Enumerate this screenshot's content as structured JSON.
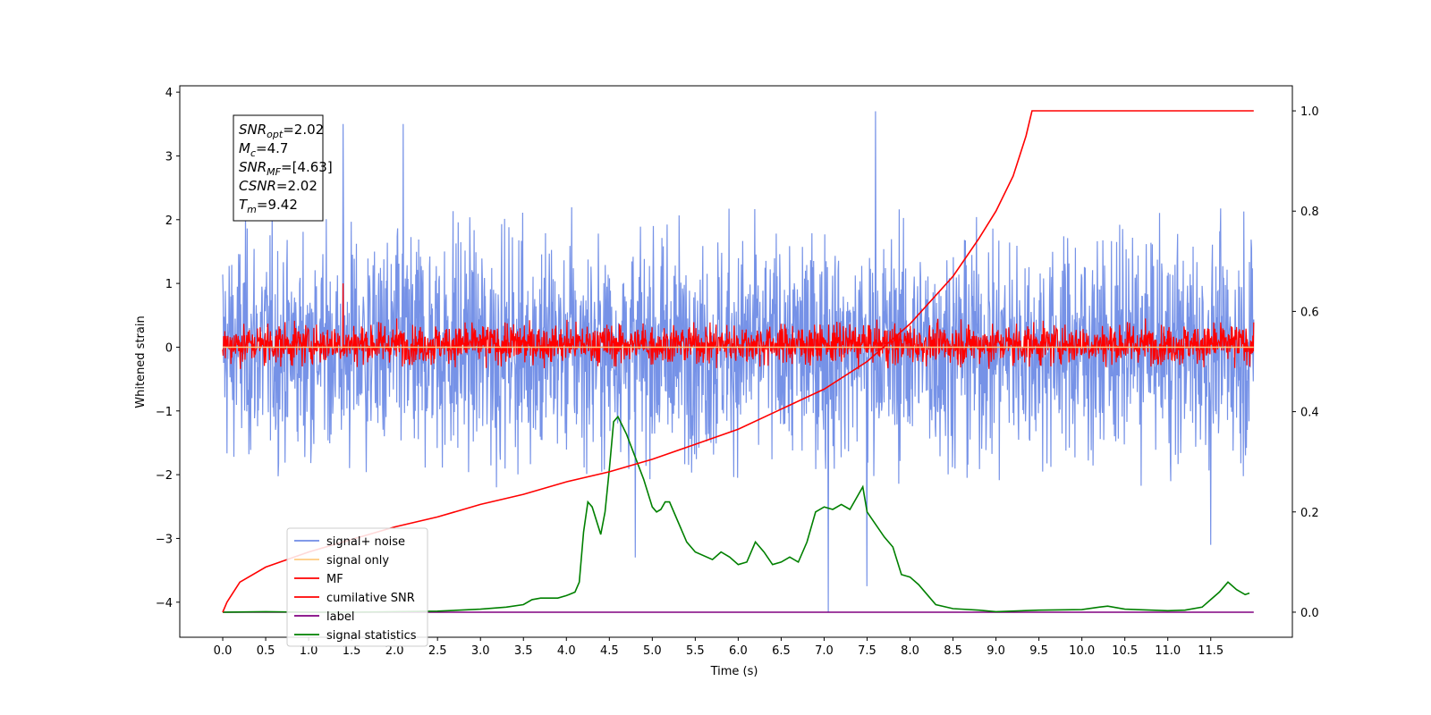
{
  "chart_data": {
    "type": "line",
    "xlabel": "Time (s)",
    "ylabel": "Whitened strain",
    "xlim": [
      -0.5,
      12.45
    ],
    "ylim": [
      -4.55,
      4.1
    ],
    "y2lim": [
      -0.05,
      1.05
    ],
    "x_ticks": [
      0.0,
      0.5,
      1.0,
      1.5,
      2.0,
      2.5,
      3.0,
      3.5,
      4.0,
      4.5,
      5.0,
      5.5,
      6.0,
      6.5,
      7.0,
      7.5,
      8.0,
      8.5,
      9.0,
      9.5,
      10.0,
      10.5,
      11.0,
      11.5
    ],
    "x_tick_labels": [
      "0.0",
      "0.5",
      "1.0",
      "1.5",
      "2.0",
      "2.5",
      "3.0",
      "3.5",
      "4.0",
      "4.5",
      "5.0",
      "5.5",
      "6.0",
      "6.5",
      "7.0",
      "7.5",
      "8.0",
      "8.5",
      "9.0",
      "9.5",
      "10.0",
      "10.5",
      "11.0",
      "11.5"
    ],
    "y_ticks": [
      4,
      3,
      2,
      1,
      0,
      -1,
      -2,
      -3,
      -4
    ],
    "y_tick_labels": [
      "4",
      "3",
      "2",
      "1",
      "0",
      "−1",
      "−2",
      "−3",
      "−4"
    ],
    "y2_ticks": [
      1.0,
      0.8,
      0.6,
      0.4,
      0.2,
      0.0
    ],
    "y2_tick_labels": [
      "1.0",
      "0.8",
      "0.6",
      "0.4",
      "0.2",
      "0.0"
    ],
    "grid": false,
    "legend_position": "lower-left",
    "series": [
      {
        "name": "signal+ noise",
        "color": "#6f8ce6",
        "axis": "left",
        "kind": "noise",
        "x_range": [
          0,
          12.0
        ],
        "amplitude_typical": [
          -2.2,
          2.2
        ],
        "peaks": [
          [
            1.4,
            3.5
          ],
          [
            2.1,
            3.5
          ],
          [
            7.6,
            3.7
          ],
          [
            7.05,
            -4.15
          ],
          [
            7.5,
            -3.75
          ],
          [
            4.8,
            -3.3
          ],
          [
            11.5,
            -3.1
          ]
        ]
      },
      {
        "name": "signal only",
        "color": "#ffcc80",
        "axis": "left",
        "kind": "line",
        "x": [
          0,
          12.0
        ],
        "y": [
          0,
          0
        ]
      },
      {
        "name": "MF",
        "color": "#ff0000",
        "axis": "left",
        "kind": "noise",
        "x_range": [
          0,
          12.0
        ],
        "amplitude_typical": [
          -0.35,
          0.45
        ],
        "peaks": [
          [
            1.4,
            1.0
          ]
        ]
      },
      {
        "name": "cumilative SNR",
        "color": "#ff0000",
        "axis": "right",
        "kind": "line",
        "x": [
          0.0,
          0.05,
          0.2,
          0.5,
          1.0,
          1.5,
          2.0,
          2.5,
          3.0,
          3.5,
          4.0,
          4.5,
          5.0,
          5.5,
          6.0,
          6.5,
          7.0,
          7.5,
          8.0,
          8.5,
          8.8,
          9.0,
          9.2,
          9.35,
          9.42,
          12.0
        ],
        "y": [
          0.0,
          0.02,
          0.06,
          0.09,
          0.12,
          0.145,
          0.17,
          0.19,
          0.215,
          0.235,
          0.26,
          0.28,
          0.305,
          0.335,
          0.365,
          0.405,
          0.445,
          0.5,
          0.575,
          0.67,
          0.745,
          0.8,
          0.87,
          0.95,
          1.0,
          1.0
        ]
      },
      {
        "name": "label",
        "color": "#800080",
        "axis": "right",
        "kind": "line",
        "x": [
          0,
          12.0
        ],
        "y": [
          0,
          0
        ]
      },
      {
        "name": "signal statistics",
        "color": "#008000",
        "axis": "right",
        "kind": "line",
        "x": [
          0.0,
          0.5,
          1.0,
          1.5,
          2.0,
          2.5,
          3.0,
          3.3,
          3.5,
          3.6,
          3.7,
          3.9,
          4.0,
          4.1,
          4.15,
          4.2,
          4.25,
          4.3,
          4.4,
          4.45,
          4.5,
          4.55,
          4.6,
          4.7,
          4.8,
          4.9,
          5.0,
          5.05,
          5.1,
          5.15,
          5.2,
          5.3,
          5.4,
          5.5,
          5.7,
          5.8,
          5.9,
          6.0,
          6.1,
          6.2,
          6.3,
          6.4,
          6.5,
          6.6,
          6.7,
          6.8,
          6.9,
          7.0,
          7.1,
          7.2,
          7.3,
          7.4,
          7.45,
          7.5,
          7.7,
          7.8,
          7.9,
          8.0,
          8.1,
          8.2,
          8.3,
          8.5,
          8.8,
          9.0,
          9.5,
          10.0,
          10.2,
          10.3,
          10.5,
          11.0,
          11.2,
          11.4,
          11.5,
          11.6,
          11.7,
          11.8,
          11.9,
          11.95
        ],
        "y": [
          0.0,
          0.001,
          0.0,
          0.0,
          0.001,
          0.002,
          0.006,
          0.01,
          0.015,
          0.025,
          0.028,
          0.028,
          0.033,
          0.04,
          0.06,
          0.16,
          0.22,
          0.21,
          0.155,
          0.2,
          0.285,
          0.38,
          0.39,
          0.355,
          0.31,
          0.265,
          0.21,
          0.2,
          0.205,
          0.22,
          0.22,
          0.18,
          0.14,
          0.12,
          0.105,
          0.12,
          0.11,
          0.095,
          0.1,
          0.14,
          0.12,
          0.095,
          0.1,
          0.11,
          0.1,
          0.14,
          0.2,
          0.21,
          0.205,
          0.215,
          0.205,
          0.235,
          0.25,
          0.2,
          0.15,
          0.13,
          0.075,
          0.07,
          0.055,
          0.035,
          0.015,
          0.007,
          0.004,
          0.001,
          0.004,
          0.005,
          0.01,
          0.012,
          0.006,
          0.003,
          0.004,
          0.01,
          0.025,
          0.04,
          0.06,
          0.045,
          0.035,
          0.038
        ]
      }
    ],
    "annotation": {
      "lines": [
        {
          "var": "SNR",
          "sub": "opt",
          "rest": "=2.02"
        },
        {
          "var": "M",
          "sub": "c",
          "rest": "=4.7"
        },
        {
          "var": "SNR",
          "sub": "MF",
          "rest": "=[4.63]"
        },
        {
          "var": "CSNR",
          "sub": "",
          "rest": "=2.02"
        },
        {
          "var": "T",
          "sub": "m",
          "rest": "=9.42"
        }
      ]
    }
  }
}
